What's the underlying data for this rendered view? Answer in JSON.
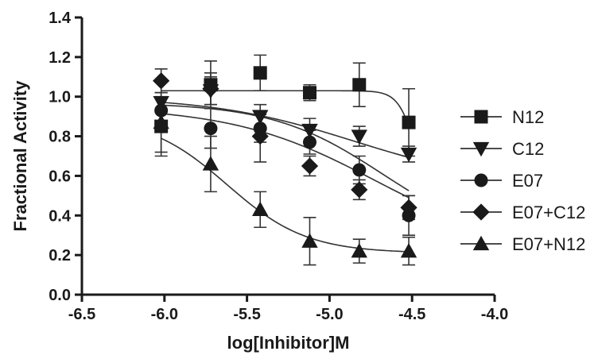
{
  "chart_data": {
    "type": "line",
    "xlabel": "log[Inhibitor]M",
    "ylabel": "Fractional Activity",
    "xlim": [
      -6.5,
      -4.0
    ],
    "ylim": [
      0.0,
      1.4
    ],
    "xticks": [
      "-6.5",
      "-6.0",
      "-5.5",
      "-5.0",
      "-4.5",
      "-4.0"
    ],
    "yticks": [
      "0.0",
      "0.2",
      "0.4",
      "0.6",
      "0.8",
      "1.0",
      "1.2",
      "1.4"
    ],
    "xtick_values": [
      -6.5,
      -6.0,
      -5.5,
      -5.0,
      -4.5,
      -4.0
    ],
    "ytick_values": [
      0.0,
      0.2,
      0.4,
      0.6,
      0.8,
      1.0,
      1.2,
      1.4
    ],
    "grid": false,
    "legend_position": "right",
    "x": [
      -6.02,
      -5.72,
      -5.42,
      -5.12,
      -4.82,
      -4.52
    ],
    "series": [
      {
        "name": "N12",
        "marker": "square",
        "values": [
          0.85,
          1.06,
          1.12,
          1.02,
          1.06,
          0.87
        ],
        "errors": [
          0.15,
          0.12,
          0.09,
          0.04,
          0.11,
          0.17
        ],
        "curve": {
          "top": 1.03,
          "bottom": 0.4,
          "logIC50": -4.47,
          "hill": 8.0
        }
      },
      {
        "name": "C12",
        "marker": "triangle-down",
        "values": [
          0.97,
          1.03,
          0.9,
          0.83,
          0.8,
          0.71
        ],
        "errors": [
          0.05,
          0.07,
          0.06,
          0.06,
          0.05,
          0.04
        ],
        "curve": {
          "top": 1.0,
          "bottom": 0.55,
          "logIC50": -4.85,
          "hill": 1.0
        }
      },
      {
        "name": "E07",
        "marker": "circle",
        "values": [
          0.93,
          0.84,
          0.84,
          0.77,
          0.63,
          0.4
        ],
        "errors": [
          0.06,
          0.1,
          0.07,
          0.06,
          0.07,
          0.1
        ],
        "curve": {
          "top": 0.97,
          "bottom": 0.25,
          "logIC50": -4.68,
          "hill": 1.3
        }
      },
      {
        "name": "E07+C12",
        "marker": "diamond",
        "values": [
          1.08,
          1.04,
          0.8,
          0.65,
          0.53,
          0.44
        ],
        "errors": [
          0.06,
          0.08,
          0.13,
          0.05,
          0.05,
          0.06
        ],
        "curve": {
          "top": 0.95,
          "bottom": 0.2,
          "logIC50": -4.72,
          "hill": 1.0
        }
      },
      {
        "name": "E07+N12",
        "marker": "triangle-up",
        "values": [
          0.87,
          0.66,
          0.43,
          0.27,
          0.22,
          0.22
        ],
        "errors": [
          0.15,
          0.14,
          0.09,
          0.12,
          0.06,
          0.07
        ],
        "curve": {
          "top": 0.9,
          "bottom": 0.21,
          "logIC50": -5.62,
          "hill": 1.8
        }
      }
    ]
  }
}
